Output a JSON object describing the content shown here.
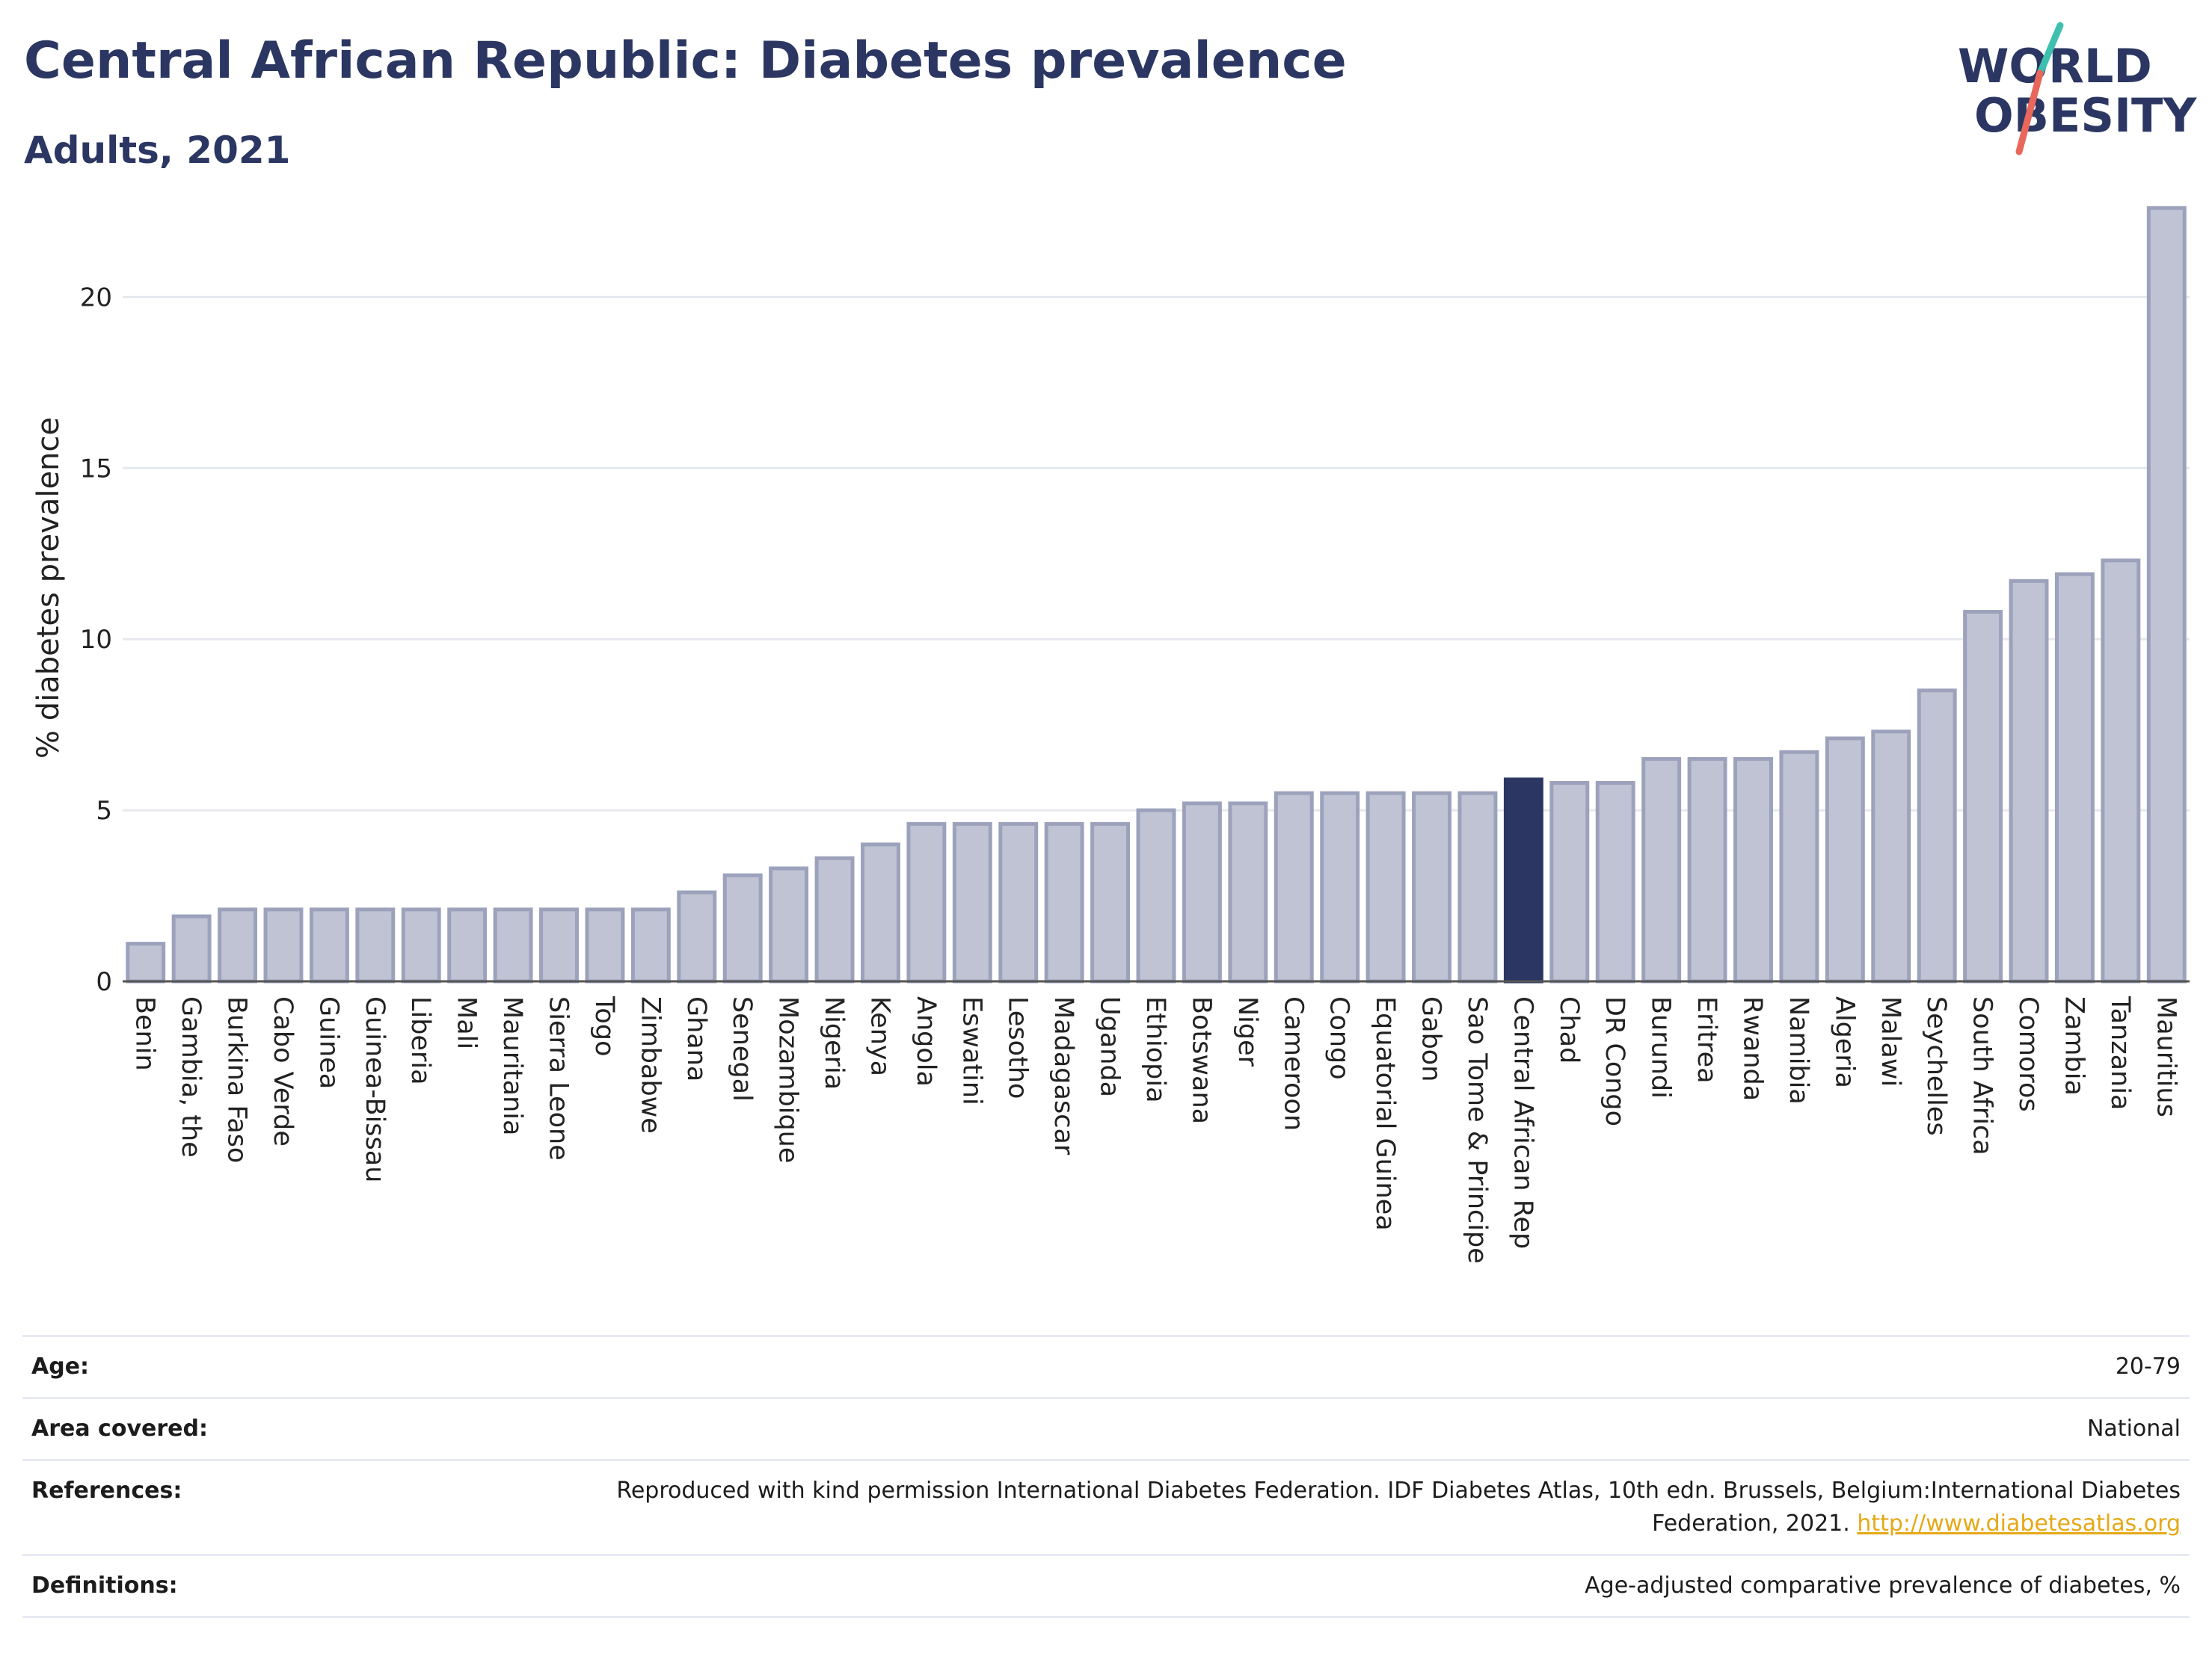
{
  "header": {
    "title": "Central African Republic: Diabetes prevalence",
    "subtitle": "Adults, 2021"
  },
  "logo": {
    "line1": "WORLD",
    "line2": "OBESITY",
    "slash_colors": [
      "#3fbfb0",
      "#e8675a"
    ]
  },
  "colors": {
    "highlight": "#2b3762",
    "bar_fill": "#bfc3d3",
    "bar_stroke": "#9ca2bb",
    "grid": "#e6e8ef",
    "text": "#2b3762",
    "link": "#e6a817"
  },
  "chart_data": {
    "type": "bar",
    "ylabel": "% diabetes prevalence",
    "ylim": [
      0,
      23
    ],
    "yticks": [
      0,
      5,
      10,
      15,
      20
    ],
    "highlight": "Central African Rep",
    "categories": [
      "Benin",
      "Gambia, the",
      "Burkina Faso",
      "Cabo Verde",
      "Guinea",
      "Guinea-Bissau",
      "Liberia",
      "Mali",
      "Mauritania",
      "Sierra Leone",
      "Togo",
      "Zimbabwe",
      "Ghana",
      "Senegal",
      "Mozambique",
      "Nigeria",
      "Kenya",
      "Angola",
      "Eswatini",
      "Lesotho",
      "Madagascar",
      "Uganda",
      "Ethiopia",
      "Botswana",
      "Niger",
      "Cameroon",
      "Congo",
      "Equatorial Guinea",
      "Gabon",
      "Sao Tome & Principe",
      "Central African Rep",
      "Chad",
      "DR Congo",
      "Burundi",
      "Eritrea",
      "Rwanda",
      "Namibia",
      "Algeria",
      "Malawi",
      "Seychelles",
      "South Africa",
      "Comoros",
      "Zambia",
      "Tanzania",
      "Mauritius"
    ],
    "values": [
      1.1,
      1.9,
      2.1,
      2.1,
      2.1,
      2.1,
      2.1,
      2.1,
      2.1,
      2.1,
      2.1,
      2.1,
      2.6,
      3.1,
      3.3,
      3.6,
      4.0,
      4.6,
      4.6,
      4.6,
      4.6,
      4.6,
      5.0,
      5.2,
      5.2,
      5.5,
      5.5,
      5.5,
      5.5,
      5.5,
      5.9,
      5.8,
      5.8,
      6.5,
      6.5,
      6.5,
      6.7,
      7.1,
      7.3,
      8.5,
      10.8,
      11.7,
      11.9,
      12.3,
      22.6
    ],
    "grid": true,
    "legend": "none"
  },
  "meta": [
    {
      "key": "Age:",
      "value": "20-79"
    },
    {
      "key": "Area covered:",
      "value": "National"
    },
    {
      "key": "References:",
      "value": "Reproduced with kind permission International Diabetes Federation.  IDF Diabetes Atlas, 10th edn. Brussels, Belgium:International Diabetes Federation, 2021.",
      "link": "http://www.diabetesatlas.org"
    },
    {
      "key": "Definitions:",
      "value": "Age-adjusted comparative prevalence of diabetes, %"
    }
  ]
}
